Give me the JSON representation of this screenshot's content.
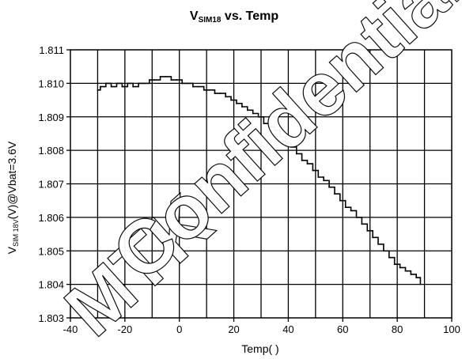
{
  "chart_data": {
    "type": "line",
    "title_main": "V",
    "title_sub": "SIM18",
    "title_rest": " vs. Temp",
    "xlabel": "Temp(   )",
    "ylabel_prefix": "V",
    "ylabel_sub": "SIM 18V",
    "ylabel_rest": "(V)@Vbat=3.6V",
    "xlim": [
      -40,
      100
    ],
    "ylim": [
      1.803,
      1.811
    ],
    "x_ticks": [
      -40,
      -20,
      0,
      20,
      40,
      60,
      80,
      100
    ],
    "x_tick_labels": [
      "-40",
      "-20",
      "0",
      "20",
      "40",
      "60",
      "80",
      "100"
    ],
    "y_ticks": [
      1.803,
      1.804,
      1.805,
      1.806,
      1.807,
      1.808,
      1.809,
      1.81,
      1.811
    ],
    "y_tick_labels": [
      "1.803",
      "1.804",
      "1.805",
      "1.806",
      "1.807",
      "1.808",
      "1.809",
      "1.810",
      "1.811"
    ],
    "x_minor_step": 10,
    "grid": true,
    "legend": "none",
    "colors": {
      "line": "#000000",
      "grid": "#000000"
    },
    "series": [
      {
        "x": [
          -30,
          -29,
          -27,
          -25,
          -23,
          -21,
          -19,
          -17,
          -15,
          -13,
          -11,
          -9,
          -7,
          -5,
          -3,
          -1,
          1,
          3,
          5,
          7,
          9,
          11,
          13,
          15,
          17,
          19,
          21,
          23,
          25,
          27,
          29,
          31,
          33,
          35,
          37,
          39,
          41,
          43,
          45,
          47,
          49,
          51,
          53,
          55,
          57,
          59,
          61,
          63,
          65,
          67,
          69,
          71,
          73,
          75,
          77,
          79,
          81,
          83,
          85,
          87,
          88.5
        ],
        "y": [
          1.8098,
          1.8099,
          1.81,
          1.8099,
          1.81,
          1.8099,
          1.81,
          1.8099,
          1.81,
          1.81,
          1.8101,
          1.8101,
          1.8102,
          1.8102,
          1.8101,
          1.8101,
          1.81,
          1.81,
          1.8099,
          1.8099,
          1.8098,
          1.8098,
          1.8097,
          1.8097,
          1.8096,
          1.8095,
          1.8094,
          1.8093,
          1.8092,
          1.8091,
          1.809,
          1.8088,
          1.8087,
          1.8086,
          1.8084,
          1.8082,
          1.8081,
          1.8079,
          1.8077,
          1.8076,
          1.8074,
          1.8072,
          1.8071,
          1.8069,
          1.8067,
          1.8065,
          1.8063,
          1.8062,
          1.806,
          1.8058,
          1.8056,
          1.8054,
          1.8052,
          1.805,
          1.8048,
          1.8046,
          1.8045,
          1.8044,
          1.8043,
          1.8042,
          1.804
        ]
      }
    ]
  },
  "watermark": {
    "line1": "MTK",
    "line2": "Confidential"
  }
}
